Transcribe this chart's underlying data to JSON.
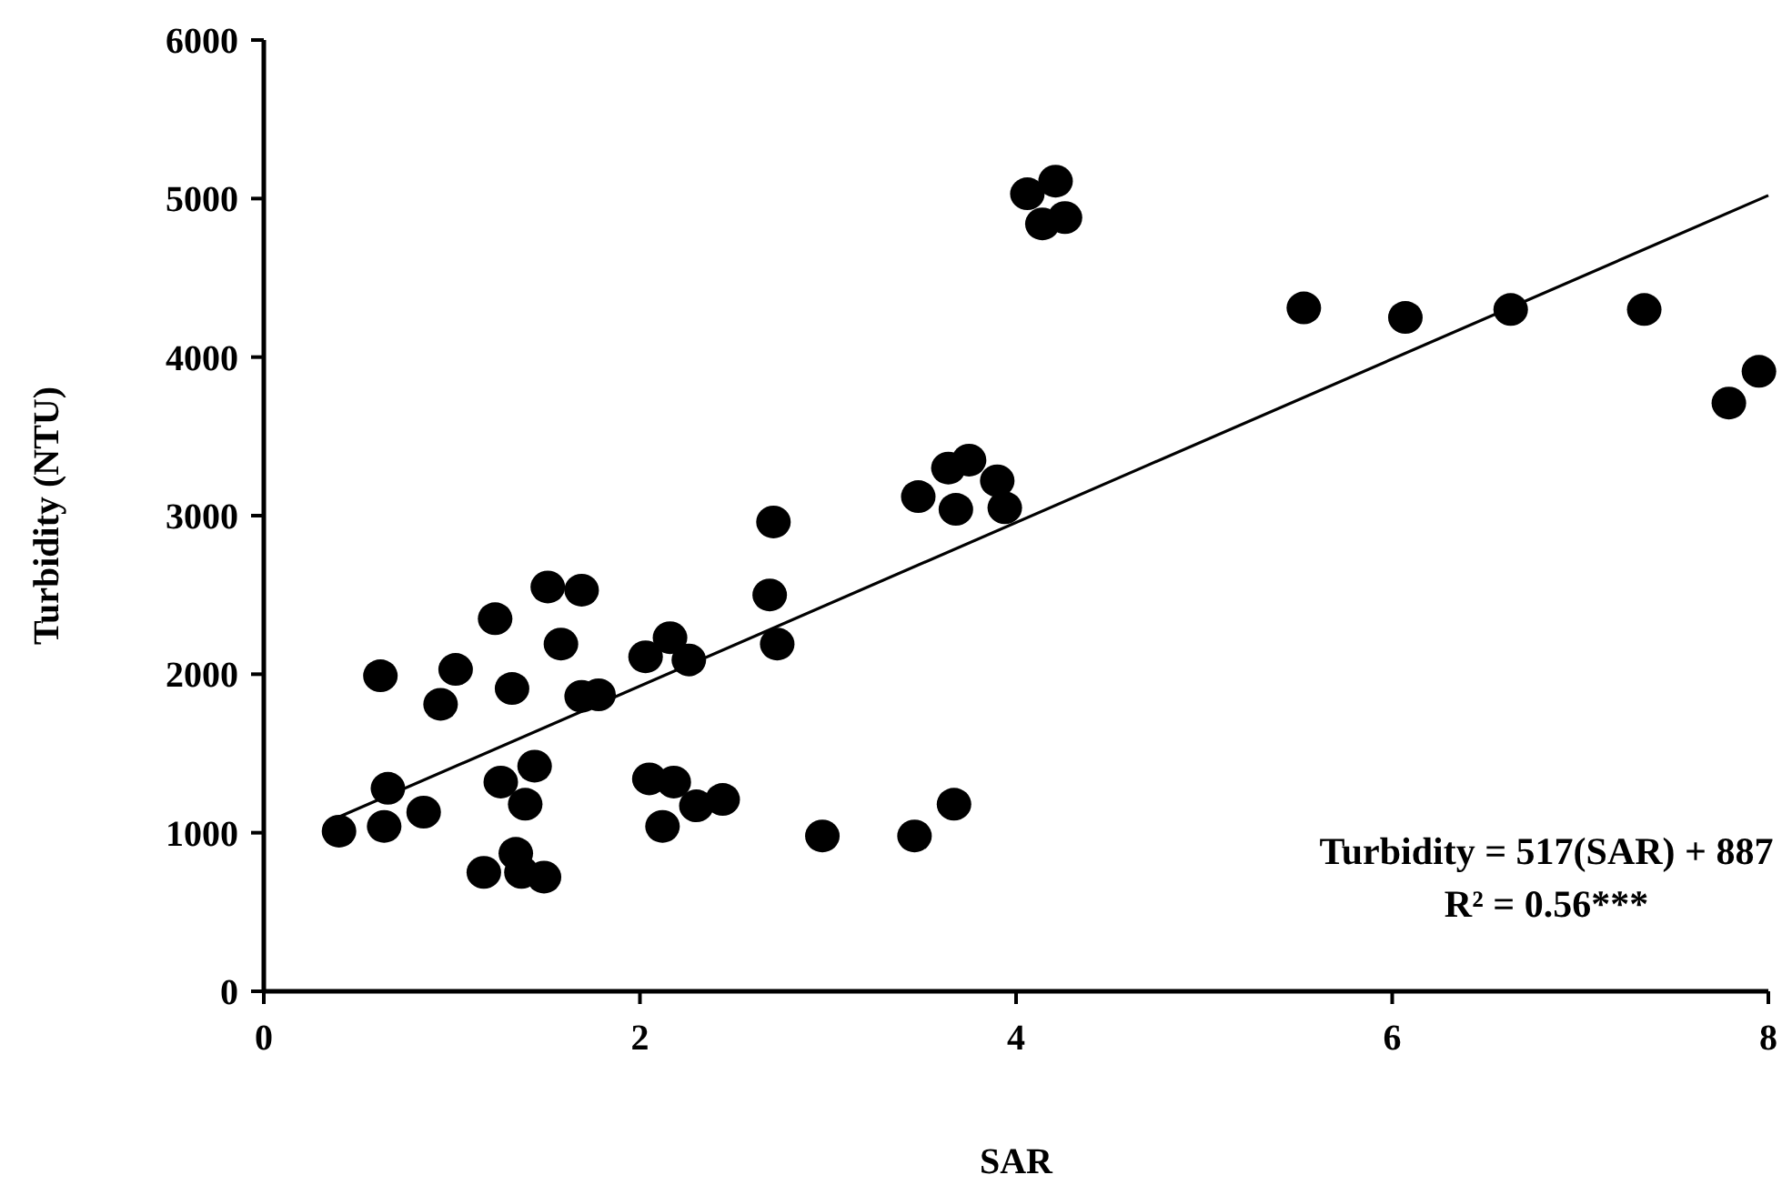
{
  "chart_data": {
    "type": "scatter",
    "xlabel": "SAR",
    "ylabel": "Turbidity (NTU)",
    "xlim": [
      0,
      8
    ],
    "xticks": [
      0,
      2,
      4,
      6,
      8
    ],
    "ylim": [
      0,
      6000
    ],
    "yticks": [
      0,
      1000,
      2000,
      3000,
      4000,
      5000,
      6000
    ],
    "grid": false,
    "marker": "circle",
    "series": [
      {
        "color": "#000000",
        "x": [
          0.4,
          0.62,
          0.64,
          0.66,
          0.85,
          0.94,
          1.02,
          1.23,
          1.17,
          1.26,
          1.32,
          1.34,
          1.39,
          1.37,
          1.44,
          1.49,
          1.51,
          1.58,
          1.69,
          1.69,
          1.78,
          2.03,
          2.05,
          2.12,
          2.16,
          2.18,
          2.26,
          2.3,
          2.44,
          2.69,
          2.73,
          2.97,
          2.71,
          3.48,
          3.64,
          3.75,
          3.68,
          3.9,
          3.94,
          4.06,
          4.21,
          4.14,
          4.26,
          3.46,
          3.67,
          5.53,
          6.07,
          6.63,
          7.34,
          7.79,
          7.95
        ],
        "values": [
          1010,
          1990,
          1040,
          1280,
          1130,
          1810,
          2030,
          2350,
          750,
          1320,
          1910,
          870,
          1180,
          750,
          1420,
          720,
          2550,
          2190,
          2530,
          1860,
          1870,
          2110,
          1340,
          1040,
          2230,
          1320,
          2090,
          1170,
          1210,
          2500,
          2190,
          980,
          2960,
          3120,
          3300,
          3350,
          3040,
          3220,
          3050,
          5030,
          5110,
          4840,
          4880,
          980,
          1180,
          4310,
          4250,
          4300,
          4300,
          3710,
          3910
        ]
      },
      {
        "type": "line",
        "color": "#000000",
        "marker": "none",
        "line_style": "solid",
        "x": [
          0.4,
          8
        ],
        "values": [
          1100,
          5020
        ]
      }
    ],
    "annotations": [
      "Turbidity = 517(SAR) + 887",
      "R² = 0.56***"
    ]
  }
}
